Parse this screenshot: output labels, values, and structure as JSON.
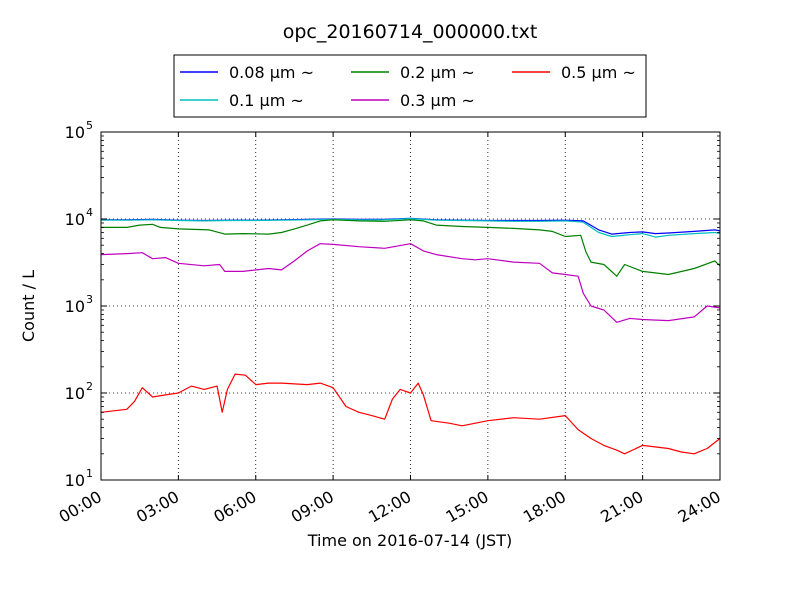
{
  "chart_data": {
    "type": "line",
    "title": "opc_20160714_000000.txt",
    "xlabel": "Time on 2016-07-14 (JST)",
    "ylabel": "Count / L",
    "xlim": [
      0,
      24
    ],
    "ylim": [
      10,
      100000
    ],
    "yscale": "log",
    "grid": true,
    "legend_position": "top-outside",
    "x_ticks": [
      {
        "value": 0,
        "label": "00:00"
      },
      {
        "value": 3,
        "label": "03:00"
      },
      {
        "value": 6,
        "label": "06:00"
      },
      {
        "value": 9,
        "label": "09:00"
      },
      {
        "value": 12,
        "label": "12:00"
      },
      {
        "value": 15,
        "label": "15:00"
      },
      {
        "value": 18,
        "label": "18:00"
      },
      {
        "value": 21,
        "label": "21:00"
      },
      {
        "value": 24,
        "label": "24:00"
      }
    ],
    "y_ticks": [
      {
        "value": 10,
        "base": "10",
        "exp": "1"
      },
      {
        "value": 100,
        "base": "10",
        "exp": "2"
      },
      {
        "value": 1000,
        "base": "10",
        "exp": "3"
      },
      {
        "value": 10000,
        "base": "10",
        "exp": "4"
      },
      {
        "value": 100000,
        "base": "10",
        "exp": "5"
      }
    ],
    "legend_layout": [
      [
        "0.08 µm ~",
        "0.2 µm ~",
        "0.5 µm ~"
      ],
      [
        "0.1 µm ~",
        "0.3 µm ~"
      ]
    ],
    "series": [
      {
        "name": "0.08 µm ~",
        "color": "#0000ff",
        "points": [
          [
            0,
            9800
          ],
          [
            1,
            9800
          ],
          [
            2,
            9900
          ],
          [
            3,
            9700
          ],
          [
            4,
            9600
          ],
          [
            5,
            9700
          ],
          [
            6,
            9700
          ],
          [
            7,
            9800
          ],
          [
            8,
            9900
          ],
          [
            9,
            10000
          ],
          [
            10,
            9900
          ],
          [
            11,
            9900
          ],
          [
            12,
            10200
          ],
          [
            13,
            9800
          ],
          [
            14,
            9700
          ],
          [
            15,
            9600
          ],
          [
            16,
            9600
          ],
          [
            17,
            9600
          ],
          [
            18,
            9700
          ],
          [
            18.7,
            9500
          ],
          [
            19.3,
            7500
          ],
          [
            19.8,
            6700
          ],
          [
            20.5,
            7000
          ],
          [
            21,
            7100
          ],
          [
            21.5,
            6800
          ],
          [
            22,
            6900
          ],
          [
            23,
            7200
          ],
          [
            23.8,
            7500
          ],
          [
            24,
            7300
          ]
        ]
      },
      {
        "name": "0.1 µm ~",
        "color": "#00bfbf",
        "points": [
          [
            0,
            9700
          ],
          [
            1,
            9700
          ],
          [
            2,
            9800
          ],
          [
            3,
            9600
          ],
          [
            4,
            9500
          ],
          [
            5,
            9600
          ],
          [
            6,
            9600
          ],
          [
            7,
            9700
          ],
          [
            8,
            9800
          ],
          [
            9,
            9900
          ],
          [
            10,
            9800
          ],
          [
            11,
            9800
          ],
          [
            12,
            10100
          ],
          [
            13,
            9700
          ],
          [
            14,
            9600
          ],
          [
            15,
            9500
          ],
          [
            16,
            9400
          ],
          [
            17,
            9400
          ],
          [
            18,
            9500
          ],
          [
            18.7,
            9200
          ],
          [
            19.3,
            7000
          ],
          [
            19.8,
            6300
          ],
          [
            20.5,
            6600
          ],
          [
            21,
            6800
          ],
          [
            21.5,
            6200
          ],
          [
            22,
            6500
          ],
          [
            23,
            6800
          ],
          [
            23.8,
            7000
          ],
          [
            24,
            6800
          ]
        ]
      },
      {
        "name": "0.2 µm ~",
        "color": "#008000",
        "points": [
          [
            0,
            8000
          ],
          [
            1,
            8000
          ],
          [
            1.5,
            8500
          ],
          [
            2,
            8700
          ],
          [
            2.3,
            8000
          ],
          [
            3,
            7700
          ],
          [
            4.2,
            7500
          ],
          [
            4.8,
            6700
          ],
          [
            5.5,
            6800
          ],
          [
            6.5,
            6700
          ],
          [
            7,
            7000
          ],
          [
            7.5,
            7700
          ],
          [
            8,
            8500
          ],
          [
            8.5,
            9500
          ],
          [
            9,
            9800
          ],
          [
            10,
            9500
          ],
          [
            11,
            9400
          ],
          [
            12,
            9800
          ],
          [
            12.5,
            9500
          ],
          [
            13,
            8500
          ],
          [
            14,
            8200
          ],
          [
            15,
            8000
          ],
          [
            16,
            7800
          ],
          [
            17,
            7500
          ],
          [
            17.5,
            7200
          ],
          [
            18,
            6300
          ],
          [
            18.6,
            6500
          ],
          [
            18.8,
            4200
          ],
          [
            19,
            3200
          ],
          [
            19.5,
            3000
          ],
          [
            20,
            2200
          ],
          [
            20.3,
            3000
          ],
          [
            21,
            2500
          ],
          [
            22,
            2300
          ],
          [
            23,
            2700
          ],
          [
            23.8,
            3300
          ],
          [
            24,
            2900
          ]
        ]
      },
      {
        "name": "0.3 µm ~",
        "color": "#bf00bf",
        "points": [
          [
            0,
            3900
          ],
          [
            1,
            4000
          ],
          [
            1.6,
            4100
          ],
          [
            2,
            3500
          ],
          [
            2.5,
            3600
          ],
          [
            3,
            3100
          ],
          [
            4,
            2900
          ],
          [
            4.6,
            3000
          ],
          [
            4.8,
            2500
          ],
          [
            5.5,
            2500
          ],
          [
            6.5,
            2700
          ],
          [
            7,
            2600
          ],
          [
            7.5,
            3300
          ],
          [
            8,
            4300
          ],
          [
            8.5,
            5200
          ],
          [
            9,
            5100
          ],
          [
            10,
            4800
          ],
          [
            11,
            4600
          ],
          [
            12,
            5200
          ],
          [
            12.5,
            4300
          ],
          [
            13,
            3900
          ],
          [
            14,
            3500
          ],
          [
            14.5,
            3400
          ],
          [
            15,
            3500
          ],
          [
            16,
            3200
          ],
          [
            17,
            3100
          ],
          [
            17.5,
            2400
          ],
          [
            18,
            2300
          ],
          [
            18.5,
            2200
          ],
          [
            18.7,
            1400
          ],
          [
            19,
            1000
          ],
          [
            19.5,
            900
          ],
          [
            20,
            650
          ],
          [
            20.5,
            720
          ],
          [
            21,
            700
          ],
          [
            22,
            680
          ],
          [
            23,
            750
          ],
          [
            23.5,
            1000
          ],
          [
            24,
            950
          ]
        ]
      },
      {
        "name": "0.5 µm ~",
        "color": "#ff0000",
        "points": [
          [
            0,
            60
          ],
          [
            1,
            65
          ],
          [
            1.3,
            80
          ],
          [
            1.6,
            115
          ],
          [
            2,
            90
          ],
          [
            2.5,
            95
          ],
          [
            3,
            100
          ],
          [
            3.5,
            120
          ],
          [
            4,
            110
          ],
          [
            4.5,
            120
          ],
          [
            4.7,
            60
          ],
          [
            4.9,
            110
          ],
          [
            5.2,
            165
          ],
          [
            5.6,
            160
          ],
          [
            6,
            125
          ],
          [
            6.5,
            130
          ],
          [
            7,
            130
          ],
          [
            8,
            125
          ],
          [
            8.5,
            130
          ],
          [
            9,
            115
          ],
          [
            9.5,
            70
          ],
          [
            10,
            60
          ],
          [
            10.5,
            55
          ],
          [
            11,
            50
          ],
          [
            11.3,
            85
          ],
          [
            11.6,
            110
          ],
          [
            12,
            100
          ],
          [
            12.3,
            130
          ],
          [
            12.5,
            95
          ],
          [
            12.8,
            48
          ],
          [
            13.5,
            45
          ],
          [
            14,
            42
          ],
          [
            15,
            48
          ],
          [
            16,
            52
          ],
          [
            17,
            50
          ],
          [
            18,
            55
          ],
          [
            18.5,
            38
          ],
          [
            19,
            30
          ],
          [
            19.5,
            25
          ],
          [
            20,
            22
          ],
          [
            20.3,
            20
          ],
          [
            21,
            25
          ],
          [
            22,
            23
          ],
          [
            22.5,
            21
          ],
          [
            23,
            20
          ],
          [
            23.5,
            23
          ],
          [
            24,
            30
          ]
        ]
      }
    ]
  }
}
